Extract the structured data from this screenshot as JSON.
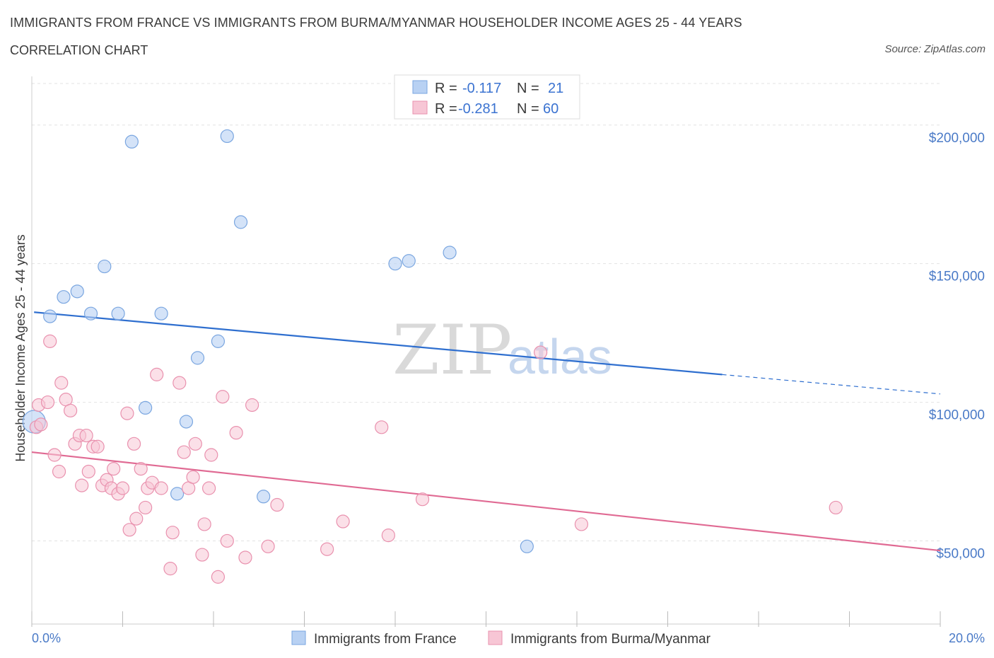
{
  "header": {
    "title": "IMMIGRANTS FROM FRANCE VS IMMIGRANTS FROM BURMA/MYANMAR HOUSEHOLDER INCOME AGES 25 - 44 YEARS",
    "subtitle": "CORRELATION CHART",
    "source": "Source: ZipAtlas.com"
  },
  "watermark": {
    "zip": "ZIP",
    "atlas": "atlas"
  },
  "legend": {
    "france": {
      "r_label": "R =",
      "r_value": "-0.117",
      "n_label": "N =",
      "n_value": "21"
    },
    "burma": {
      "r_label": "R =",
      "r_value": "-0.281",
      "n_label": "N =",
      "n_value": "60"
    }
  },
  "colors": {
    "france_fill": "#b8d1f3",
    "france_stroke": "#7aa6e0",
    "france_line": "#2f6fcf",
    "burma_fill": "#f7c6d5",
    "burma_stroke": "#e991ae",
    "burma_line": "#e06a93",
    "value_text": "#3b73d1",
    "grid": "#e3e3e3"
  },
  "chart_data": {
    "type": "scatter",
    "xlabel": "",
    "ylabel": "Householder Income Ages 25 - 44 years",
    "xlim": [
      0,
      20
    ],
    "ylim": [
      20000,
      215000
    ],
    "x_tick_labels": [
      "0.0%",
      "20.0%"
    ],
    "y_ticks": [
      50000,
      100000,
      150000,
      200000
    ],
    "y_tick_labels": [
      "$50,000",
      "$100,000",
      "$150,000",
      "$200,000"
    ],
    "grid": true,
    "series": [
      {
        "name": "Immigrants from France",
        "points": [
          [
            0.05,
            93000
          ],
          [
            0.4,
            131000
          ],
          [
            0.7,
            138000
          ],
          [
            1.0,
            140000
          ],
          [
            1.3,
            132000
          ],
          [
            1.6,
            149000
          ],
          [
            1.9,
            132000
          ],
          [
            2.2,
            194000
          ],
          [
            2.5,
            98000
          ],
          [
            2.85,
            132000
          ],
          [
            3.2,
            67000
          ],
          [
            3.4,
            93000
          ],
          [
            3.65,
            116000
          ],
          [
            4.1,
            122000
          ],
          [
            4.3,
            196000
          ],
          [
            4.6,
            165000
          ],
          [
            5.1,
            66000
          ],
          [
            8.0,
            150000
          ],
          [
            8.3,
            151000
          ],
          [
            9.2,
            154000
          ],
          [
            10.9,
            48000
          ]
        ],
        "trend": {
          "x0": 0.05,
          "y0": 132500,
          "x1": 15.2,
          "y1": 110000,
          "dash_x1": 20.0,
          "dash_y1": 103000
        }
      },
      {
        "name": "Immigrants from Burma/Myanmar",
        "points": [
          [
            0.1,
            91000
          ],
          [
            0.15,
            99000
          ],
          [
            0.2,
            92000
          ],
          [
            0.35,
            100000
          ],
          [
            0.4,
            122000
          ],
          [
            0.5,
            81000
          ],
          [
            0.6,
            75000
          ],
          [
            0.65,
            107000
          ],
          [
            0.75,
            101000
          ],
          [
            0.85,
            97000
          ],
          [
            0.95,
            85000
          ],
          [
            1.05,
            88000
          ],
          [
            1.1,
            70000
          ],
          [
            1.2,
            88000
          ],
          [
            1.25,
            75000
          ],
          [
            1.35,
            84000
          ],
          [
            1.45,
            84000
          ],
          [
            1.55,
            70000
          ],
          [
            1.65,
            72000
          ],
          [
            1.75,
            69000
          ],
          [
            1.8,
            76000
          ],
          [
            1.9,
            67000
          ],
          [
            2.0,
            69000
          ],
          [
            2.1,
            96000
          ],
          [
            2.15,
            54000
          ],
          [
            2.25,
            85000
          ],
          [
            2.3,
            58000
          ],
          [
            2.4,
            76000
          ],
          [
            2.5,
            62000
          ],
          [
            2.55,
            69000
          ],
          [
            2.65,
            71000
          ],
          [
            2.75,
            110000
          ],
          [
            2.85,
            69000
          ],
          [
            3.05,
            40000
          ],
          [
            3.1,
            53000
          ],
          [
            3.25,
            107000
          ],
          [
            3.35,
            82000
          ],
          [
            3.45,
            69000
          ],
          [
            3.55,
            73000
          ],
          [
            3.6,
            85000
          ],
          [
            3.75,
            45000
          ],
          [
            3.8,
            56000
          ],
          [
            3.9,
            69000
          ],
          [
            3.95,
            81000
          ],
          [
            4.1,
            37000
          ],
          [
            4.2,
            102000
          ],
          [
            4.3,
            50000
          ],
          [
            4.5,
            89000
          ],
          [
            4.7,
            44000
          ],
          [
            4.85,
            99000
          ],
          [
            5.2,
            48000
          ],
          [
            5.4,
            63000
          ],
          [
            6.5,
            47000
          ],
          [
            6.85,
            57000
          ],
          [
            7.7,
            91000
          ],
          [
            7.85,
            52000
          ],
          [
            8.6,
            65000
          ],
          [
            11.2,
            118000
          ],
          [
            12.1,
            56000
          ],
          [
            17.7,
            62000
          ]
        ],
        "trend": {
          "x0": 0.0,
          "y0": 82000,
          "x1": 20.0,
          "y1": 46500
        }
      }
    ]
  },
  "bottom_legend": {
    "france_label": "Immigrants from France",
    "burma_label": "Immigrants from Burma/Myanmar"
  }
}
